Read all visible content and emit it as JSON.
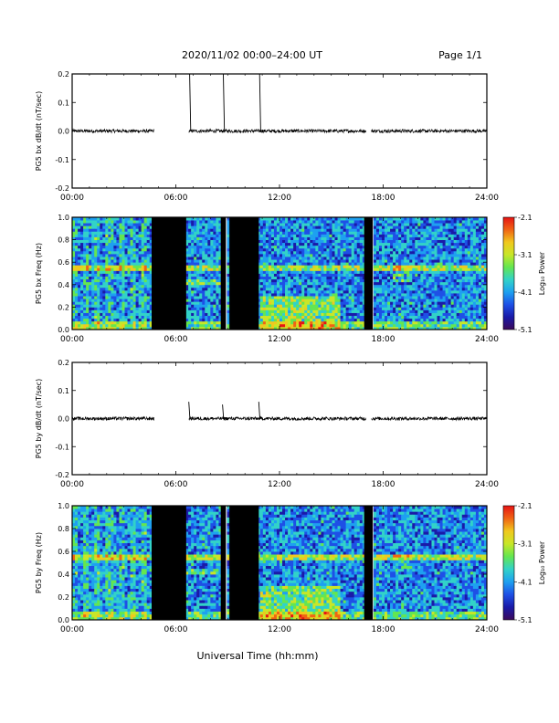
{
  "header": {
    "title": "2020/11/02   00:00–24:00 UT",
    "page": "Page 1/1"
  },
  "xlabel": "Universal Time (hh:mm)",
  "colors": {
    "trace": "#000000",
    "gap": "#000000",
    "colormap": [
      "#3c0a5a",
      "#1a1aa8",
      "#1e50e6",
      "#1ea0f0",
      "#32d2c8",
      "#64e650",
      "#c8e628",
      "#f0c81e",
      "#f06414",
      "#e61414"
    ]
  },
  "chart_data": [
    {
      "type": "line",
      "ylabel": "PG5 bx dB/dt (nT/sec)",
      "xlim": [
        0,
        24
      ],
      "ylim": [
        -0.2,
        0.2
      ],
      "xticks": [
        "00:00",
        "06:00",
        "12:00",
        "18:00",
        "24:00"
      ],
      "yticks": [
        "0.2",
        "0.1",
        "0.0",
        "-0.1",
        "-0.2"
      ],
      "baseline": 0.0,
      "data_gaps_hours": [
        [
          4.75,
          6.75
        ],
        [
          17.0,
          17.3
        ]
      ],
      "spikes": [
        {
          "x": 6.8,
          "y": 0.2
        },
        {
          "x": 8.75,
          "y": 0.2
        },
        {
          "x": 10.85,
          "y": 0.2
        }
      ]
    },
    {
      "type": "heatmap",
      "ylabel": "PG5 bx Freq (Hz)",
      "colorbar_label": "Log₁₀ Power",
      "xlim": [
        0,
        24
      ],
      "ylim": [
        0.0,
        1.0
      ],
      "xticks": [
        "00:00",
        "06:00",
        "12:00",
        "18:00",
        "24:00"
      ],
      "yticks": [
        "1.0",
        "0.8",
        "0.6",
        "0.4",
        "0.2",
        "0.0"
      ],
      "colorbar_ticks": [
        "-2.1",
        "-3.1",
        "-4.1",
        "-5.1"
      ],
      "zlim": [
        -5.1,
        -2.1
      ],
      "no_data_hours": [
        [
          4.6,
          6.6
        ],
        [
          8.6,
          8.9
        ],
        [
          9.1,
          10.8
        ],
        [
          16.9,
          17.4
        ]
      ],
      "tone_freq_hz": 0.56
    },
    {
      "type": "line",
      "ylabel": "PG5 by dB/dt (nT/sec)",
      "xlim": [
        0,
        24
      ],
      "ylim": [
        -0.2,
        0.2
      ],
      "xticks": [
        "00:00",
        "06:00",
        "12:00",
        "18:00",
        "24:00"
      ],
      "yticks": [
        "0.2",
        "0.1",
        "0.0",
        "-0.1",
        "-0.2"
      ],
      "baseline": 0.0,
      "data_gaps_hours": [
        [
          4.75,
          6.75
        ],
        [
          17.0,
          17.3
        ]
      ],
      "spikes": [
        {
          "x": 6.75,
          "y": 0.06
        },
        {
          "x": 8.7,
          "y": 0.05
        },
        {
          "x": 10.8,
          "y": 0.06
        }
      ]
    },
    {
      "type": "heatmap",
      "ylabel": "PG5 by Freq (Hz)",
      "colorbar_label": "Log₁₀ Power",
      "xlim": [
        0,
        24
      ],
      "ylim": [
        0.0,
        1.0
      ],
      "xticks": [
        "00:00",
        "06:00",
        "12:00",
        "18:00",
        "24:00"
      ],
      "yticks": [
        "1.0",
        "0.8",
        "0.6",
        "0.4",
        "0.2",
        "0.0"
      ],
      "colorbar_ticks": [
        "-2.1",
        "-3.1",
        "-4.1",
        "-5.1"
      ],
      "zlim": [
        -5.1,
        -2.1
      ],
      "no_data_hours": [
        [
          4.6,
          6.6
        ],
        [
          8.6,
          8.9
        ],
        [
          9.1,
          10.8
        ],
        [
          16.9,
          17.4
        ]
      ],
      "tone_freq_hz": 0.56
    }
  ]
}
